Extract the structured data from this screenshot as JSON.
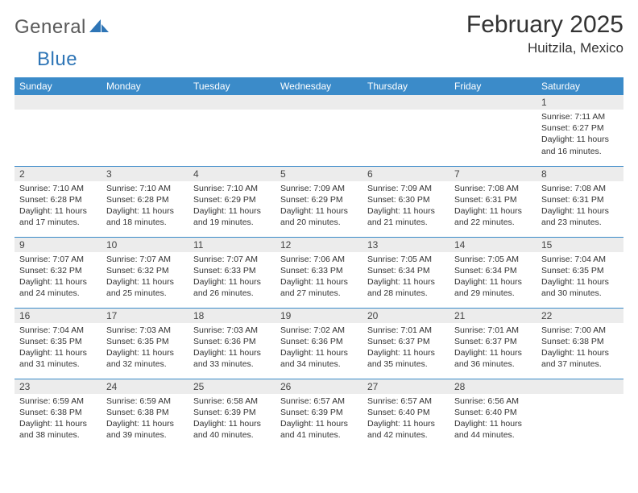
{
  "brand": {
    "part1": "General",
    "part2": "Blue"
  },
  "title": "February 2025",
  "location": "Huitzila, Mexico",
  "colors": {
    "header_bg": "#3b8bc9",
    "header_fg": "#ffffff",
    "daynum_bg": "#ececec",
    "rule": "#3b8bc9"
  },
  "weekdays": [
    "Sunday",
    "Monday",
    "Tuesday",
    "Wednesday",
    "Thursday",
    "Friday",
    "Saturday"
  ],
  "weeks": [
    [
      null,
      null,
      null,
      null,
      null,
      null,
      {
        "n": "1",
        "sr": "Sunrise: 7:11 AM",
        "ss": "Sunset: 6:27 PM",
        "dl": "Daylight: 11 hours and 16 minutes."
      }
    ],
    [
      {
        "n": "2",
        "sr": "Sunrise: 7:10 AM",
        "ss": "Sunset: 6:28 PM",
        "dl": "Daylight: 11 hours and 17 minutes."
      },
      {
        "n": "3",
        "sr": "Sunrise: 7:10 AM",
        "ss": "Sunset: 6:28 PM",
        "dl": "Daylight: 11 hours and 18 minutes."
      },
      {
        "n": "4",
        "sr": "Sunrise: 7:10 AM",
        "ss": "Sunset: 6:29 PM",
        "dl": "Daylight: 11 hours and 19 minutes."
      },
      {
        "n": "5",
        "sr": "Sunrise: 7:09 AM",
        "ss": "Sunset: 6:29 PM",
        "dl": "Daylight: 11 hours and 20 minutes."
      },
      {
        "n": "6",
        "sr": "Sunrise: 7:09 AM",
        "ss": "Sunset: 6:30 PM",
        "dl": "Daylight: 11 hours and 21 minutes."
      },
      {
        "n": "7",
        "sr": "Sunrise: 7:08 AM",
        "ss": "Sunset: 6:31 PM",
        "dl": "Daylight: 11 hours and 22 minutes."
      },
      {
        "n": "8",
        "sr": "Sunrise: 7:08 AM",
        "ss": "Sunset: 6:31 PM",
        "dl": "Daylight: 11 hours and 23 minutes."
      }
    ],
    [
      {
        "n": "9",
        "sr": "Sunrise: 7:07 AM",
        "ss": "Sunset: 6:32 PM",
        "dl": "Daylight: 11 hours and 24 minutes."
      },
      {
        "n": "10",
        "sr": "Sunrise: 7:07 AM",
        "ss": "Sunset: 6:32 PM",
        "dl": "Daylight: 11 hours and 25 minutes."
      },
      {
        "n": "11",
        "sr": "Sunrise: 7:07 AM",
        "ss": "Sunset: 6:33 PM",
        "dl": "Daylight: 11 hours and 26 minutes."
      },
      {
        "n": "12",
        "sr": "Sunrise: 7:06 AM",
        "ss": "Sunset: 6:33 PM",
        "dl": "Daylight: 11 hours and 27 minutes."
      },
      {
        "n": "13",
        "sr": "Sunrise: 7:05 AM",
        "ss": "Sunset: 6:34 PM",
        "dl": "Daylight: 11 hours and 28 minutes."
      },
      {
        "n": "14",
        "sr": "Sunrise: 7:05 AM",
        "ss": "Sunset: 6:34 PM",
        "dl": "Daylight: 11 hours and 29 minutes."
      },
      {
        "n": "15",
        "sr": "Sunrise: 7:04 AM",
        "ss": "Sunset: 6:35 PM",
        "dl": "Daylight: 11 hours and 30 minutes."
      }
    ],
    [
      {
        "n": "16",
        "sr": "Sunrise: 7:04 AM",
        "ss": "Sunset: 6:35 PM",
        "dl": "Daylight: 11 hours and 31 minutes."
      },
      {
        "n": "17",
        "sr": "Sunrise: 7:03 AM",
        "ss": "Sunset: 6:35 PM",
        "dl": "Daylight: 11 hours and 32 minutes."
      },
      {
        "n": "18",
        "sr": "Sunrise: 7:03 AM",
        "ss": "Sunset: 6:36 PM",
        "dl": "Daylight: 11 hours and 33 minutes."
      },
      {
        "n": "19",
        "sr": "Sunrise: 7:02 AM",
        "ss": "Sunset: 6:36 PM",
        "dl": "Daylight: 11 hours and 34 minutes."
      },
      {
        "n": "20",
        "sr": "Sunrise: 7:01 AM",
        "ss": "Sunset: 6:37 PM",
        "dl": "Daylight: 11 hours and 35 minutes."
      },
      {
        "n": "21",
        "sr": "Sunrise: 7:01 AM",
        "ss": "Sunset: 6:37 PM",
        "dl": "Daylight: 11 hours and 36 minutes."
      },
      {
        "n": "22",
        "sr": "Sunrise: 7:00 AM",
        "ss": "Sunset: 6:38 PM",
        "dl": "Daylight: 11 hours and 37 minutes."
      }
    ],
    [
      {
        "n": "23",
        "sr": "Sunrise: 6:59 AM",
        "ss": "Sunset: 6:38 PM",
        "dl": "Daylight: 11 hours and 38 minutes."
      },
      {
        "n": "24",
        "sr": "Sunrise: 6:59 AM",
        "ss": "Sunset: 6:38 PM",
        "dl": "Daylight: 11 hours and 39 minutes."
      },
      {
        "n": "25",
        "sr": "Sunrise: 6:58 AM",
        "ss": "Sunset: 6:39 PM",
        "dl": "Daylight: 11 hours and 40 minutes."
      },
      {
        "n": "26",
        "sr": "Sunrise: 6:57 AM",
        "ss": "Sunset: 6:39 PM",
        "dl": "Daylight: 11 hours and 41 minutes."
      },
      {
        "n": "27",
        "sr": "Sunrise: 6:57 AM",
        "ss": "Sunset: 6:40 PM",
        "dl": "Daylight: 11 hours and 42 minutes."
      },
      {
        "n": "28",
        "sr": "Sunrise: 6:56 AM",
        "ss": "Sunset: 6:40 PM",
        "dl": "Daylight: 11 hours and 44 minutes."
      },
      null
    ]
  ]
}
